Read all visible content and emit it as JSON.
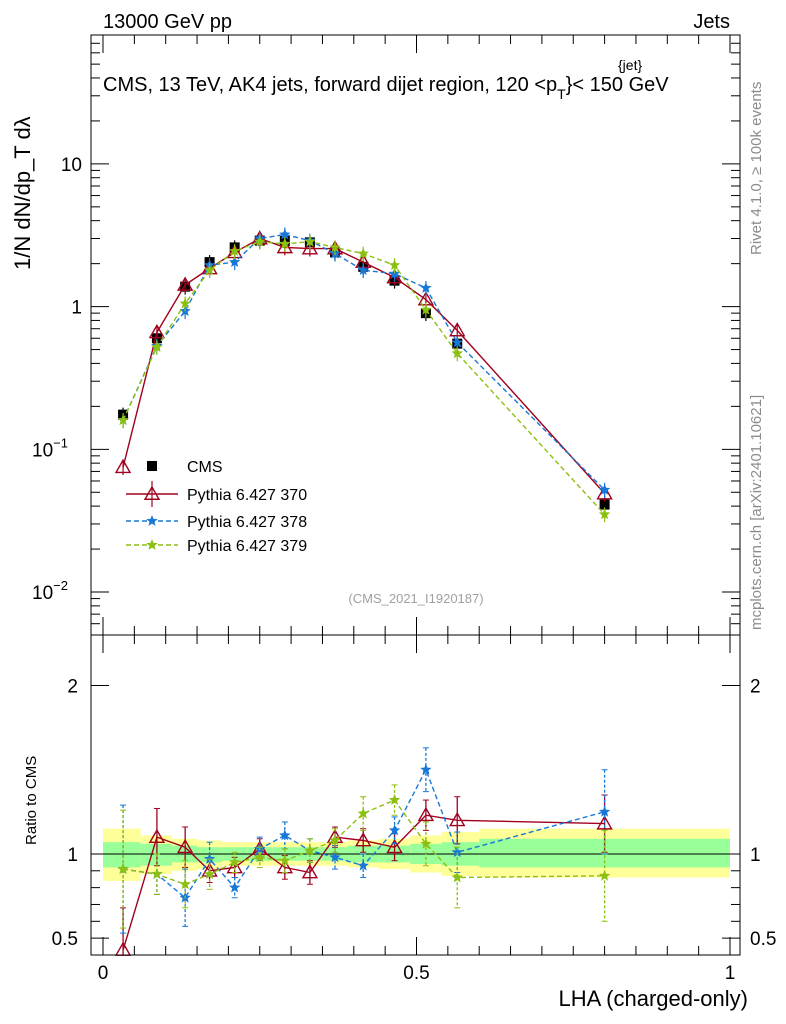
{
  "header": {
    "left": "13000 GeV pp",
    "right": "Jets"
  },
  "chart_title": "CMS, 13 TeV, AK4 jets, forward dijet region, 120 <p",
  "title_sub": "T",
  "title_sup": "{jet}",
  "title_tail": "}< 150 GeV",
  "watermark": "(CMS_2021_I1920187)",
  "side_right_top": "Rivet 4.1.0, ≥ 100k events",
  "side_right_bottom": "mcplots.cern.ch [arXiv:2401.10621]",
  "ylabel_main": "1/N dN/dp_T dλ",
  "ylabel_ratio": "Ratio to CMS",
  "xlabel": "LHA (charged-only)",
  "chart_data": [
    {
      "type": "line",
      "panel": "main",
      "yscale": "log",
      "xlim": [
        0,
        1
      ],
      "ylim": [
        0.005,
        80
      ],
      "yticks": [
        {
          "value": 0.01,
          "base": "10",
          "exp": "−2"
        },
        {
          "value": 0.1,
          "base": "10",
          "exp": "−1"
        },
        {
          "value": 1,
          "base": "1",
          "exp": ""
        },
        {
          "value": 10,
          "base": "10",
          "exp": ""
        }
      ],
      "series": [
        {
          "name": "CMS",
          "color": "#000000",
          "marker": "square",
          "x": [
            0.032,
            0.086,
            0.131,
            0.17,
            0.21,
            0.25,
            0.29,
            0.33,
            0.37,
            0.415,
            0.465,
            0.515,
            0.565,
            0.8
          ],
          "y": [
            0.175,
            0.6,
            1.38,
            2.05,
            2.6,
            2.9,
            2.88,
            2.82,
            2.4,
            1.9,
            1.52,
            0.9,
            0.55,
            0.041
          ]
        },
        {
          "name": "Pythia 6.427 370",
          "color": "#a0001e",
          "marker": "triangle",
          "dash": "",
          "x": [
            0.032,
            0.086,
            0.131,
            0.17,
            0.21,
            0.25,
            0.29,
            0.33,
            0.37,
            0.415,
            0.465,
            0.515,
            0.565,
            0.8
          ],
          "y": [
            0.075,
            0.66,
            1.42,
            1.85,
            2.4,
            3.0,
            2.6,
            2.55,
            2.55,
            2.05,
            1.6,
            1.12,
            0.68,
            0.049
          ]
        },
        {
          "name": "Pythia 6.427 378",
          "color": "#1878d8",
          "marker": "star",
          "dash": "5,3",
          "x": [
            0.032,
            0.086,
            0.131,
            0.17,
            0.21,
            0.25,
            0.29,
            0.33,
            0.37,
            0.415,
            0.465,
            0.515,
            0.565,
            0.8
          ],
          "y": [
            0.16,
            0.53,
            0.93,
            1.95,
            2.05,
            3.0,
            3.2,
            2.9,
            2.35,
            1.8,
            1.7,
            1.35,
            0.56,
            0.052
          ]
        },
        {
          "name": "Pythia 6.427 379",
          "color": "#8cc010",
          "marker": "star",
          "dash": "5,3",
          "x": [
            0.032,
            0.086,
            0.131,
            0.17,
            0.21,
            0.25,
            0.29,
            0.33,
            0.37,
            0.415,
            0.465,
            0.515,
            0.565,
            0.8
          ],
          "y": [
            0.16,
            0.52,
            1.05,
            1.8,
            2.45,
            2.85,
            2.75,
            2.85,
            2.6,
            2.35,
            1.95,
            0.95,
            0.47,
            0.035
          ]
        }
      ],
      "legend": [
        {
          "label": "CMS"
        },
        {
          "label": "Pythia 6.427 370"
        },
        {
          "label": "Pythia 6.427 378"
        },
        {
          "label": "Pythia 6.427 379"
        }
      ]
    },
    {
      "type": "line",
      "panel": "ratio",
      "xlim": [
        0,
        1
      ],
      "ylim": [
        0.4,
        2.3
      ],
      "yticks": [
        0.5,
        1,
        2
      ],
      "ytick_labels": [
        "0.5",
        "1",
        "2"
      ],
      "xticks": [
        0,
        0.5,
        1
      ],
      "xtick_labels": [
        "0",
        "0.5",
        "1"
      ],
      "bands": [
        {
          "x0": 0.0,
          "x1": 0.06,
          "inner": [
            0.92,
            1.07
          ],
          "outer": [
            0.84,
            1.15
          ]
        },
        {
          "x0": 0.06,
          "x1": 0.11,
          "inner": [
            0.93,
            1.06
          ],
          "outer": [
            0.88,
            1.11
          ]
        },
        {
          "x0": 0.11,
          "x1": 0.15,
          "inner": [
            0.95,
            1.05
          ],
          "outer": [
            0.9,
            1.09
          ]
        },
        {
          "x0": 0.15,
          "x1": 0.19,
          "inner": [
            0.95,
            1.04
          ],
          "outer": [
            0.91,
            1.08
          ]
        },
        {
          "x0": 0.19,
          "x1": 0.23,
          "inner": [
            0.96,
            1.04
          ],
          "outer": [
            0.93,
            1.07
          ]
        },
        {
          "x0": 0.23,
          "x1": 0.27,
          "inner": [
            0.96,
            1.04
          ],
          "outer": [
            0.93,
            1.07
          ]
        },
        {
          "x0": 0.27,
          "x1": 0.31,
          "inner": [
            0.96,
            1.04
          ],
          "outer": [
            0.93,
            1.07
          ]
        },
        {
          "x0": 0.31,
          "x1": 0.35,
          "inner": [
            0.96,
            1.04
          ],
          "outer": [
            0.93,
            1.07
          ]
        },
        {
          "x0": 0.35,
          "x1": 0.39,
          "inner": [
            0.96,
            1.04
          ],
          "outer": [
            0.93,
            1.07
          ]
        },
        {
          "x0": 0.39,
          "x1": 0.44,
          "inner": [
            0.95,
            1.05
          ],
          "outer": [
            0.92,
            1.08
          ]
        },
        {
          "x0": 0.44,
          "x1": 0.49,
          "inner": [
            0.95,
            1.05
          ],
          "outer": [
            0.91,
            1.09
          ]
        },
        {
          "x0": 0.49,
          "x1": 0.54,
          "inner": [
            0.94,
            1.06
          ],
          "outer": [
            0.89,
            1.11
          ]
        },
        {
          "x0": 0.54,
          "x1": 0.6,
          "inner": [
            0.93,
            1.07
          ],
          "outer": [
            0.87,
            1.13
          ]
        },
        {
          "x0": 0.6,
          "x1": 1.0,
          "inner": [
            0.92,
            1.09
          ],
          "outer": [
            0.86,
            1.15
          ]
        }
      ],
      "series": [
        {
          "name": "Pythia 6.427 370",
          "color": "#a0001e",
          "marker": "triangle",
          "dash": "",
          "x": [
            0.032,
            0.086,
            0.131,
            0.17,
            0.21,
            0.25,
            0.29,
            0.33,
            0.37,
            0.415,
            0.465,
            0.515,
            0.565,
            0.8
          ],
          "y": [
            0.43,
            1.1,
            1.04,
            0.9,
            0.92,
            1.03,
            0.92,
            0.89,
            1.1,
            1.08,
            1.04,
            1.23,
            1.2,
            1.18
          ],
          "err": [
            0.25,
            0.17,
            0.12,
            0.07,
            0.06,
            0.06,
            0.07,
            0.07,
            0.06,
            0.07,
            0.08,
            0.09,
            0.14,
            0.17
          ]
        },
        {
          "name": "Pythia 6.427 378",
          "color": "#1878d8",
          "marker": "star",
          "dash": "5,3",
          "x": [
            0.032,
            0.086,
            0.131,
            0.17,
            0.21,
            0.25,
            0.29,
            0.33,
            0.37,
            0.415,
            0.465,
            0.515,
            0.565,
            0.8
          ],
          "y": [
            0.91,
            0.88,
            0.74,
            0.97,
            0.8,
            1.03,
            1.11,
            1.02,
            0.98,
            0.93,
            1.14,
            1.5,
            1.01,
            1.25
          ],
          "err": [
            0.38,
            0.12,
            0.17,
            0.1,
            0.06,
            0.07,
            0.08,
            0.07,
            0.07,
            0.07,
            0.08,
            0.13,
            0.12,
            0.25
          ]
        },
        {
          "name": "Pythia 6.427 379",
          "color": "#8cc010",
          "marker": "star",
          "dash": "5,3",
          "x": [
            0.032,
            0.086,
            0.131,
            0.17,
            0.21,
            0.25,
            0.29,
            0.33,
            0.37,
            0.415,
            0.465,
            0.515,
            0.565,
            0.8
          ],
          "y": [
            0.91,
            0.88,
            0.82,
            0.88,
            0.95,
            0.98,
            0.96,
            1.02,
            1.08,
            1.24,
            1.32,
            1.06,
            0.86,
            0.87
          ],
          "err": [
            0.35,
            0.12,
            0.14,
            0.09,
            0.06,
            0.06,
            0.07,
            0.07,
            0.07,
            0.1,
            0.09,
            0.13,
            0.18,
            0.27
          ]
        }
      ]
    }
  ]
}
